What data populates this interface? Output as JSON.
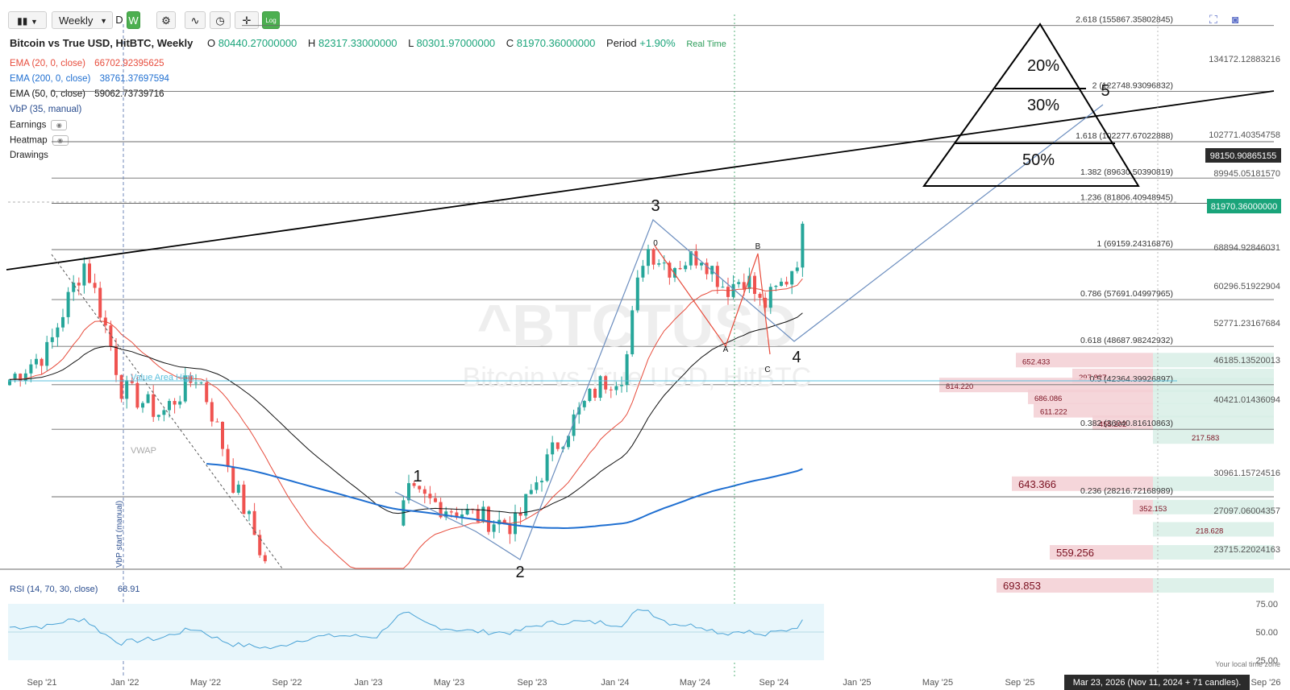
{
  "toolbar": {
    "interval": "Weekly",
    "interval_options": [
      "D",
      "W"
    ],
    "log_label": "Log"
  },
  "header": {
    "symbol_title": "Bitcoin vs True USD, HitBTC, Weekly",
    "o_label": "O",
    "o": "80440.27000000",
    "h_label": "H",
    "h": "82317.33000000",
    "l_label": "L",
    "l": "80301.97000000",
    "c_label": "C",
    "c": "81970.36000000",
    "period_label": "Period",
    "period": "+1.90%",
    "realtime": "Real Time"
  },
  "indicators": [
    {
      "label": "EMA (20, 0, close)",
      "value": "66702.92395625",
      "color": "#e74c3c"
    },
    {
      "label": "EMA (200, 0, close)",
      "value": "38761.37697594",
      "color": "#1f6fd1"
    },
    {
      "label": "EMA (50, 0, close)",
      "value": "59062.73739716",
      "color": "#111111"
    },
    {
      "label": "VbP (35, manual)",
      "value": "",
      "color": "#2a4d8f"
    },
    {
      "label": "Earnings",
      "value": "",
      "color": "#333333"
    },
    {
      "label": "Heatmap",
      "value": "",
      "color": "#333333"
    },
    {
      "label": "Drawings",
      "value": "",
      "color": "#333333"
    }
  ],
  "chart_data": {
    "type": "candlestick",
    "symbol": "^BTCTUSD",
    "watermark_symbol": "^BTCTUSD",
    "watermark_name": "Bitcoin vs True USD, HitBTC",
    "x_labels": [
      "Sep '21",
      "Jan '22",
      "May '22",
      "Sep '22",
      "Jan '23",
      "May '23",
      "Sep '23",
      "Jan '24",
      "May '24",
      "Sep '24",
      "Jan '25",
      "May '25",
      "Sep '25",
      "Sep '26"
    ],
    "y_axis_labels": [
      "134172.12883216",
      "102771.40354758",
      "89945.05181570",
      "68894.92846031",
      "60296.51922904",
      "52771.23167684",
      "46185.13520013",
      "40421.01436094",
      "30961.15724516",
      "27097.06004357",
      "23715.22024163"
    ],
    "current_price": "81970.36000000",
    "crosshair_price": "98150.90865155",
    "fibonacci": [
      {
        "label": "2.618 (155867.35802845)",
        "price": 155867.36
      },
      {
        "label": "2 (122748.93096832)",
        "price": 122748.93
      },
      {
        "label": "1.618 (102277.67022888)",
        "price": 102277.67
      },
      {
        "label": "1.382 (89630.50390819)",
        "price": 89630.5
      },
      {
        "label": "1.236 (81806.40948945)",
        "price": 81806.41
      },
      {
        "label": "1 (69159.24316876)",
        "price": 69159.24
      },
      {
        "label": "0.786 (57691.04997965)",
        "price": 57691.05
      },
      {
        "label": "0.618 (48687.98242932)",
        "price": 48687.98
      },
      {
        "label": "0.5 (42364.39926897)",
        "price": 42364.4
      },
      {
        "label": "0.382 (36040.81610863)",
        "price": 36040.82
      },
      {
        "label": "0.236 (28216.72168989)",
        "price": 28216.72
      }
    ],
    "volume_profile": [
      {
        "label": "652.433",
        "price": 46185
      },
      {
        "label": "297.827",
        "price": 43600
      },
      {
        "label": "814.220",
        "price": 42200
      },
      {
        "label": "686.086",
        "price": 40421
      },
      {
        "label": "611.222",
        "price": 38500
      },
      {
        "label": "455.202",
        "price": 36800
      },
      {
        "label": "217.583",
        "price": 35000
      },
      {
        "label": "643.366",
        "price": 29500
      },
      {
        "label": "352.153",
        "price": 27100
      },
      {
        "label": "218.628",
        "price": 25000
      },
      {
        "label": "559.256",
        "price": 23000
      },
      {
        "label": "693.853",
        "price": 20400
      }
    ],
    "wave_labels": [
      "1",
      "2",
      "3",
      "4",
      "5",
      "0",
      "A",
      "B",
      "C"
    ],
    "pyramid_labels": [
      "20%",
      "30%",
      "50%"
    ],
    "annotations": {
      "value_area_high": "Value Area High",
      "vwap": "VWAP",
      "vbp_start": "VbP start (manual)"
    },
    "rsi": {
      "label": "RSI (14, 70, 30, close)",
      "value": "68.91",
      "levels": [
        "75.00",
        "50.00",
        "25.00"
      ]
    },
    "footer": {
      "local_time": "Your local time zone",
      "crosshair_date": "Mar 23, 2026 (Nov 11, 2024 + 71 candles)."
    }
  },
  "colors": {
    "up": "#26a69a",
    "down": "#ef5350",
    "ema20": "#e74c3c",
    "ema50": "#111111",
    "ema200": "#1f6fd1",
    "accent": "#1aa47a"
  }
}
